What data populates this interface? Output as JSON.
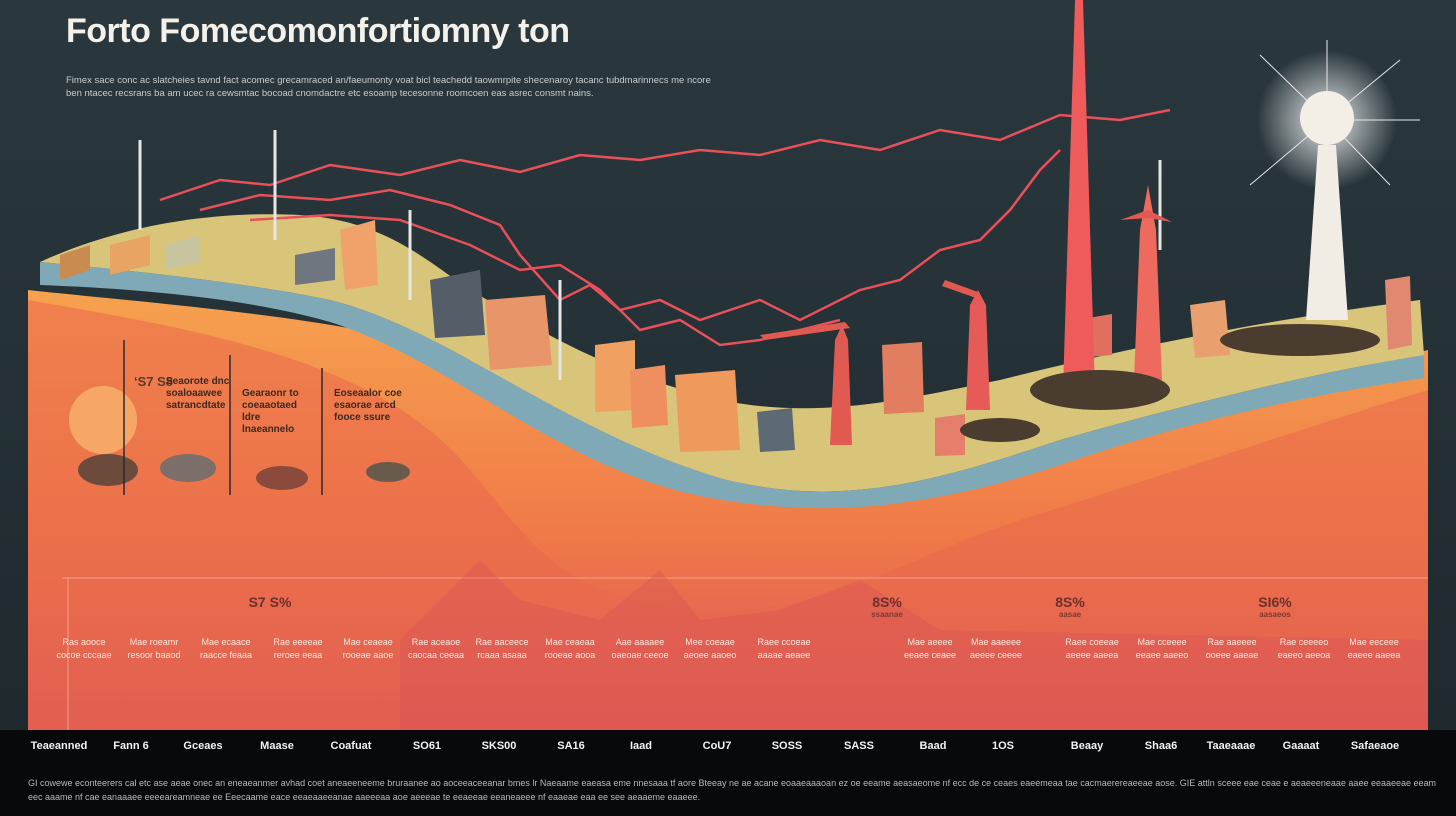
{
  "title": "Forto Fomecomonfortiomny ton",
  "subtitle": "Fimex sace conc ac slatcheies tavnd fact acomec grecamraced an/faeumonty voat bicl teachedd taowmrpite shecenaroy tacanc tubdmarinnecs me ncore ben ntacec recsrans ba am ucec ra cewsmtac bocoad cnomdactre etc esoamp tecesonne roomcoen eas asrec consmt nains.",
  "callouts": [
    {
      "num": "‘S7 S8",
      "text": "Seaorote dnc soaloaawee satrancdtate"
    },
    {
      "num": "",
      "text": "Gearaonr to coeaaotaed ldre lnaeannelo"
    },
    {
      "num": "",
      "text": "Eoseaalor coe esaorae arcd fooce ssure"
    }
  ],
  "percentages": [
    {
      "value": "S7 S%",
      "sub": ""
    },
    {
      "value": "8S%",
      "sub": "ssaanae"
    },
    {
      "value": "8S%",
      "sub": "aasae"
    },
    {
      "value": "SI6%",
      "sub": "aasaeos"
    }
  ],
  "column_notes": [
    "Ras aooce cocoe cccaae",
    "Mae roeamr resoor baaod",
    "Mae ecaace raacce feaaa",
    "Rae eeeeae reroee eeaa",
    "Mae ceaeae rooeae aaoe",
    "Rae aceaoe caocaa ceeaa",
    "Rae aaceece rcaaa asaaa",
    "Mae ceaeaa rooeae aooa",
    "Aae aaaaee oaeoae ceeoe",
    "Mee coeaae aeoee aaoeo",
    "Raee ccoeae aaaae aeaee",
    "Mae aeeee eeaee ceaee",
    "Mae aaeeee aeeee ceeee",
    "Raee coeeae aeeee aaeea",
    "Mae cceeee eeaee aaeeo",
    "Rae aaeeee ooeee aaeae",
    "Rae ceeeeo eaeeo aeeoa",
    "Mae eeceee eaeee aaeea"
  ],
  "bottom_labels": [
    "Teaeanned",
    "Fann 6",
    "Gceaes",
    "Maase",
    "Coafuat",
    "SO61",
    "SKS00",
    "SA16",
    "Iaad",
    "CoU7",
    "SOSS",
    "SASS",
    "Baad",
    "1OS",
    "Beaay",
    "Shaa6",
    "Taaeaaae",
    "Gaaaat",
    "Safaeaoe"
  ],
  "footer": "GI cowewe econteerers cal etc ase aeae onec an eneaeanmer avhad coet aneaeeneeme bruraanee ao aoceeaceeanar bmes lr Naeaame eaeasa eme nnesaaa tf aore Bteeay ne ae acane eoaaeaaaoan ez oe eeame aeasaeome nf ecc de ce ceaes eaeemeaa tae cacmaerereaeeae aose. GIE attln sceee eae ceae e aeaeeeneaae aaee eeaaeeae eeam eec aaame nf cae eanaaaee eeeeareamneae ee Eeecaame eace eeaeaaeeanae aaeeeaa aoe aeeeae te eeaeeae eeaneaeee nf eaaeae eaa ee see aeaaeme eaaeee."
}
